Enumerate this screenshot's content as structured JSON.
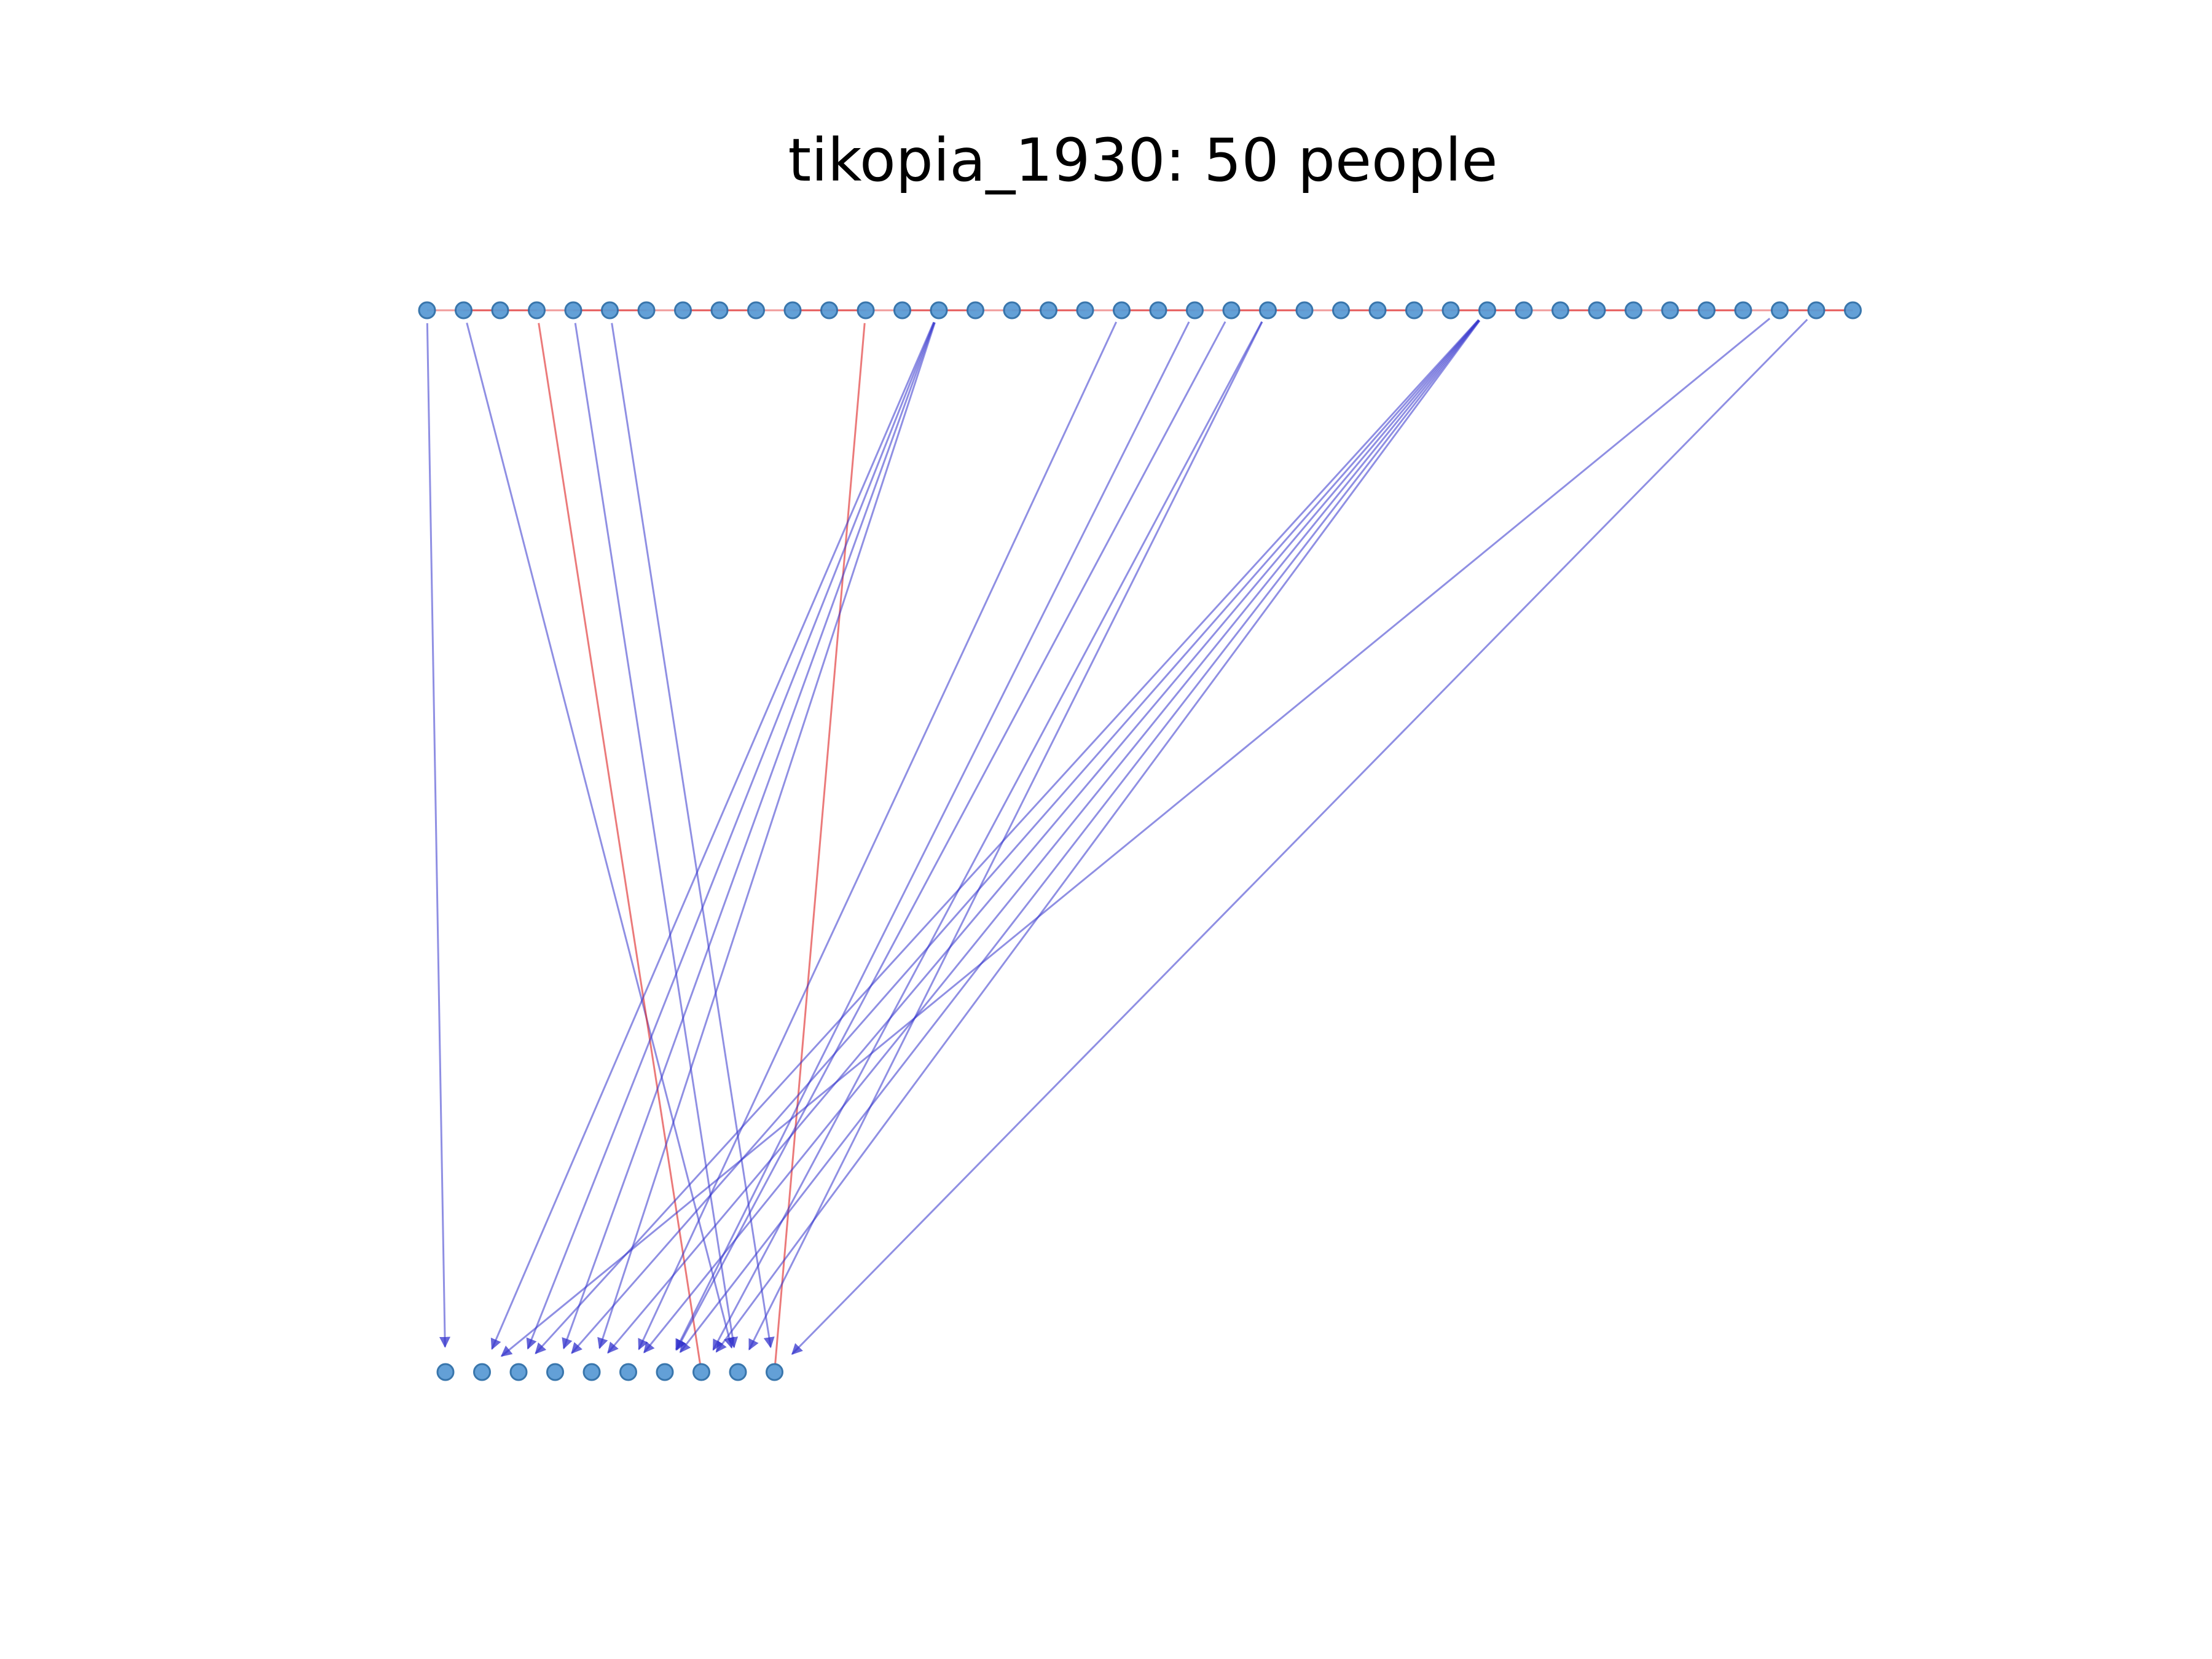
{
  "title": "tikopia_1930: 50 people",
  "colors": {
    "node": "#5b9bd5",
    "node_stroke": "#2f6fa8",
    "parent_edge": "#3333cc",
    "spouse_edge": "#dd2222",
    "background": "#ffffff"
  },
  "graph": {
    "layout": "two generations",
    "generations": [
      {
        "name": "upper",
        "count": 40
      },
      {
        "name": "lower",
        "count": 10
      }
    ],
    "spouse_links": [
      [
        0,
        1
      ],
      [
        1,
        2
      ],
      [
        2,
        3
      ],
      [
        3,
        4
      ],
      [
        4,
        5
      ],
      [
        5,
        6
      ],
      [
        6,
        7
      ],
      [
        7,
        8
      ],
      [
        8,
        9
      ],
      [
        9,
        10
      ],
      [
        10,
        11
      ],
      [
        11,
        12
      ],
      [
        12,
        13
      ],
      [
        13,
        14
      ],
      [
        14,
        15
      ],
      [
        15,
        16
      ],
      [
        16,
        17
      ],
      [
        17,
        18
      ],
      [
        18,
        19
      ],
      [
        19,
        20
      ],
      [
        20,
        21
      ],
      [
        21,
        22
      ],
      [
        22,
        23
      ],
      [
        23,
        24
      ],
      [
        24,
        25
      ],
      [
        25,
        26
      ],
      [
        26,
        27
      ],
      [
        27,
        28
      ],
      [
        28,
        29
      ],
      [
        29,
        30
      ],
      [
        30,
        31
      ],
      [
        31,
        32
      ],
      [
        32,
        33
      ],
      [
        33,
        34
      ],
      [
        34,
        35
      ],
      [
        35,
        36
      ],
      [
        36,
        37
      ],
      [
        37,
        38
      ],
      [
        38,
        39
      ]
    ],
    "links": [
      {
        "from": 0,
        "to": 0,
        "kind": "parent"
      },
      {
        "from": 1,
        "to": 8,
        "kind": "parent"
      },
      {
        "from": 3,
        "to": 7,
        "kind": "spouse"
      },
      {
        "from": 4,
        "to": 8,
        "kind": "parent"
      },
      {
        "from": 5,
        "to": 9,
        "kind": "parent"
      },
      {
        "from": 12,
        "to": 9,
        "kind": "spouse"
      },
      {
        "from": 14,
        "to": 1,
        "kind": "parent"
      },
      {
        "from": 14,
        "to": 2,
        "kind": "parent"
      },
      {
        "from": 14,
        "to": 3,
        "kind": "parent"
      },
      {
        "from": 14,
        "to": 4,
        "kind": "parent"
      },
      {
        "from": 19,
        "to": 5,
        "kind": "parent"
      },
      {
        "from": 21,
        "to": 6,
        "kind": "parent"
      },
      {
        "from": 22,
        "to": 6,
        "kind": "parent"
      },
      {
        "from": 23,
        "to": 7,
        "kind": "parent"
      },
      {
        "from": 23,
        "to": 8,
        "kind": "parent"
      },
      {
        "from": 29,
        "to": 2,
        "kind": "parent"
      },
      {
        "from": 29,
        "to": 3,
        "kind": "parent"
      },
      {
        "from": 29,
        "to": 4,
        "kind": "parent"
      },
      {
        "from": 29,
        "to": 5,
        "kind": "parent"
      },
      {
        "from": 29,
        "to": 6,
        "kind": "parent"
      },
      {
        "from": 29,
        "to": 7,
        "kind": "parent"
      },
      {
        "from": 37,
        "to": 1,
        "kind": "parent"
      },
      {
        "from": 38,
        "to": 9,
        "kind": "parent"
      }
    ]
  }
}
